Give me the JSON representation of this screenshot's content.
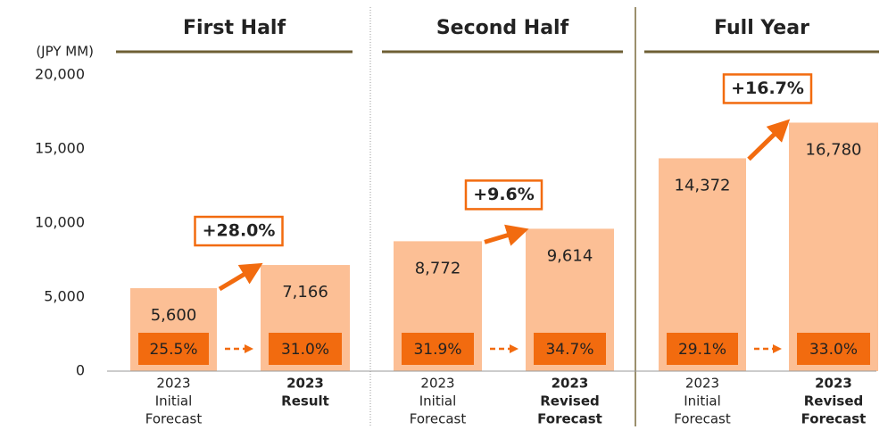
{
  "chart_data": {
    "type": "bar",
    "y_unit": "(JPY MM)",
    "ylim": [
      0,
      20000
    ],
    "yticks": [
      0,
      {
        "value": 5000,
        "label": "5,000"
      },
      {
        "value": 10000,
        "label": "10,000"
      },
      {
        "value": 15000,
        "label": "15,000"
      },
      {
        "value": 20000,
        "label": "20,000"
      }
    ],
    "color": "#fcbf95",
    "ratio_color": "#f26b0f",
    "title_color": "#6e5f34",
    "groups": [
      {
        "title": "First Half",
        "categories": [
          [
            "2023",
            "Initial",
            "Forecast"
          ],
          [
            "2023",
            "Result"
          ]
        ],
        "values": [
          5600,
          7166
        ],
        "value_labels": [
          "5,600",
          "7,166"
        ],
        "ratios": [
          25.5,
          31.0
        ],
        "ratio_labels": [
          "25.5%",
          "31.0%"
        ],
        "change": 28.0,
        "change_label": "+28.0%"
      },
      {
        "title": "Second Half",
        "categories": [
          [
            "2023",
            "Initial",
            "Forecast"
          ],
          [
            "2023",
            "Revised",
            "Forecast"
          ]
        ],
        "values": [
          8772,
          9614
        ],
        "value_labels": [
          "8,772",
          "9,614"
        ],
        "ratios": [
          31.9,
          34.7
        ],
        "ratio_labels": [
          "31.9%",
          "34.7%"
        ],
        "change": 9.6,
        "change_label": "+9.6%"
      },
      {
        "title": "Full Year",
        "categories": [
          [
            "2023",
            "Initial",
            "Forecast"
          ],
          [
            "2023",
            "Revised",
            "Forecast"
          ]
        ],
        "values": [
          14372,
          16780
        ],
        "value_labels": [
          "14,372",
          "16,780"
        ],
        "ratios": [
          29.1,
          33.0
        ],
        "ratio_labels": [
          "29.1%",
          "33.0%"
        ],
        "change": 16.7,
        "change_label": "+16.7%"
      }
    ]
  }
}
